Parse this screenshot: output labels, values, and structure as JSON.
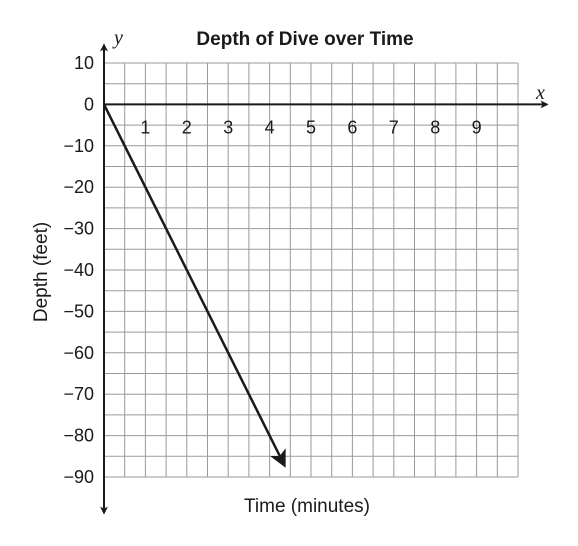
{
  "chart_data": {
    "type": "line",
    "title": "Depth of Dive over Time",
    "xlabel": "Time (minutes)",
    "ylabel": "Depth (feet)",
    "x_axis_name": "x",
    "y_axis_name": "y",
    "xlim": [
      0,
      10
    ],
    "ylim": [
      -90,
      10
    ],
    "grid": true,
    "grid_step_x": 0.5,
    "grid_step_y": 5,
    "x_ticks": [
      "1",
      "2",
      "3",
      "4",
      "5",
      "6",
      "7",
      "8",
      "9"
    ],
    "y_ticks": [
      "10",
      "0",
      "−10",
      "−20",
      "−30",
      "−40",
      "−50",
      "−60",
      "−70",
      "−80",
      "−90"
    ],
    "series": [
      {
        "x": [
          0,
          4.35
        ],
        "y": [
          0,
          -87
        ],
        "arrow_end": true,
        "color": "#1a1a1a"
      }
    ],
    "colors": {
      "grid": "#9a9a9a",
      "axis": "#1a1a1a",
      "line": "#1a1a1a"
    }
  }
}
